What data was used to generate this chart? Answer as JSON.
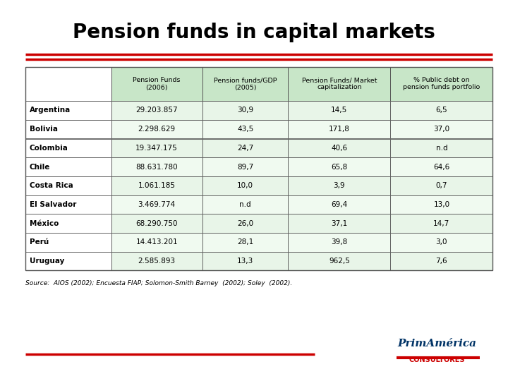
{
  "title": "Pension funds in capital markets",
  "col_headers": [
    "Pension Funds\n(2006)",
    "Pension funds/GDP\n(2005)",
    "Pension Funds/ Market\ncapitalization",
    "% Public debt on\npension funds portfolio"
  ],
  "rows": [
    [
      "Argentina",
      "29.203.857",
      "30,9",
      "14,5",
      "6,5"
    ],
    [
      "Bolivia",
      "2.298.629",
      "43,5",
      "171,8",
      "37,0"
    ],
    [
      "Colombia",
      "19.347.175",
      "24,7",
      "40,6",
      "n.d"
    ],
    [
      "Chile",
      "88.631.780",
      "89,7",
      "65,8",
      "64,6"
    ],
    [
      "Costa Rica",
      "1.061.185",
      "10,0",
      "3,9",
      "0,7"
    ],
    [
      "El Salvador",
      "3.469.774",
      "n.d",
      "69,4",
      "13,0"
    ],
    [
      "México",
      "68.290.750",
      "26,0",
      "37,1",
      "14,7"
    ],
    [
      "Perú",
      "14.413.201",
      "28,1",
      "39,8",
      "3,0"
    ],
    [
      "Uruguay",
      "2.585.893",
      "13,3",
      "962,5",
      "7,6"
    ]
  ],
  "source_text": "Source:  AIOS (2002); Encuesta FIAP; Solomon-Smith Barney  (2002); Soley  (2002).",
  "header_bg": "#c8e6c8",
  "row_bg_odd": "#e8f5e8",
  "row_bg_even": "#f0faf0",
  "border_color": "#555555",
  "title_color": "#000000",
  "red_line_color": "#cc0000",
  "logo_text1": "PrimAmérica",
  "logo_text2": "CONSULTORES",
  "logo_color": "#cc0000",
  "logo_dark": "#003366"
}
